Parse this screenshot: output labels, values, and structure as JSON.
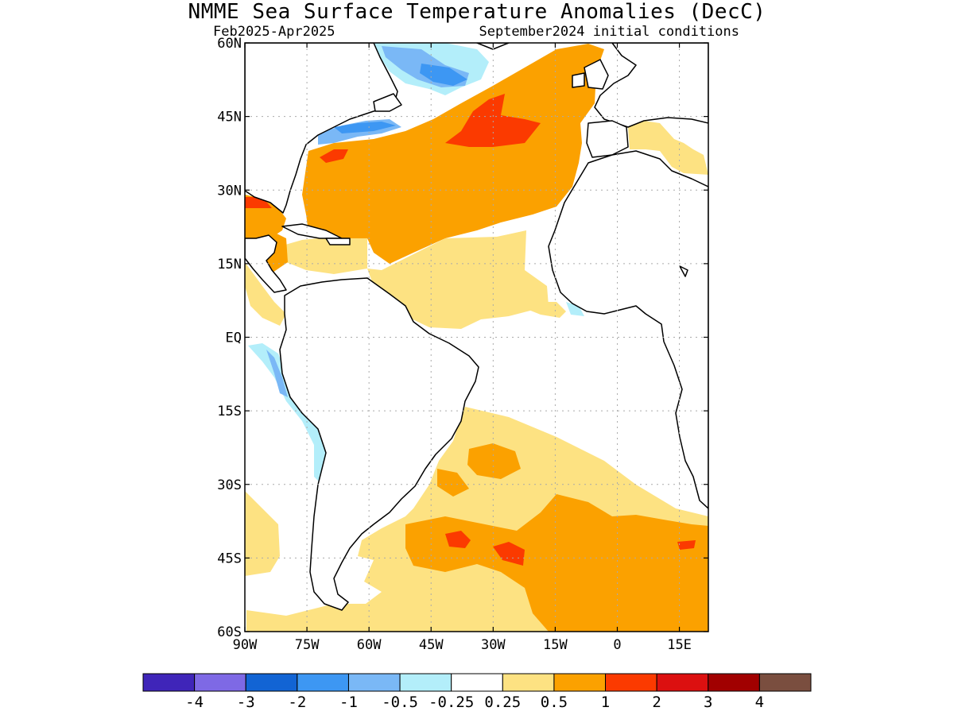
{
  "title": "NMME Sea Surface Temperature Anomalies (DecC)",
  "period": "Feb2025-Apr2025",
  "init": "September2024 initial conditions",
  "map": {
    "lon_range": [
      -90,
      22
    ],
    "lat_range": [
      -60,
      60
    ],
    "lat_ticks": [
      {
        "value": 60,
        "label": "60N"
      },
      {
        "value": 45,
        "label": "45N"
      },
      {
        "value": 30,
        "label": "30N"
      },
      {
        "value": 15,
        "label": "15N"
      },
      {
        "value": 0,
        "label": "EQ"
      },
      {
        "value": -15,
        "label": "15S"
      },
      {
        "value": -30,
        "label": "30S"
      },
      {
        "value": -45,
        "label": "45S"
      },
      {
        "value": -60,
        "label": "60S"
      }
    ],
    "lon_ticks": [
      {
        "value": -90,
        "label": "90W"
      },
      {
        "value": -75,
        "label": "75W"
      },
      {
        "value": -60,
        "label": "60W"
      },
      {
        "value": -45,
        "label": "45W"
      },
      {
        "value": -30,
        "label": "30W"
      },
      {
        "value": -15,
        "label": "15W"
      },
      {
        "value": 0,
        "label": "0"
      },
      {
        "value": 15,
        "label": "15E"
      }
    ],
    "grid": true,
    "colors": {
      "land_outline": "#000000",
      "weak_warm": "#fde282",
      "warm": "#fba100",
      "strong_warm": "#fb3a00",
      "cool": "#3d97f3",
      "weak_cool": "#b3eefa"
    }
  },
  "colorbar": {
    "colors": [
      "#3f25b9",
      "#7e69e5",
      "#1264d4",
      "#3d97f3",
      "#7ab8f6",
      "#b3eefa",
      "#ffffff",
      "#fde282",
      "#fba100",
      "#fb3a00",
      "#dc1010",
      "#a10000",
      "#7a4e3f"
    ],
    "labels": [
      "-4",
      "-3",
      "-2",
      "-1",
      "-0.5",
      "-0.25",
      "0.25",
      "0.5",
      "1",
      "2",
      "3",
      "4"
    ]
  }
}
